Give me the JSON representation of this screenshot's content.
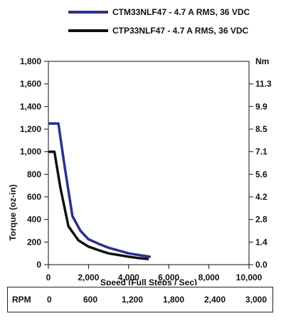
{
  "chart_data": {
    "type": "line",
    "xlabel": "Speed  (Full Steps / Sec)",
    "ylabel": "Torque (oz-in)",
    "y2label": "Nm",
    "xlim": [
      0,
      10000
    ],
    "ylim": [
      0,
      1800
    ],
    "xticks": [
      "0",
      "2,000",
      "4,000",
      "6,000",
      "8,000",
      "10,000"
    ],
    "yticks": [
      "0",
      "200",
      "400",
      "600",
      "800",
      "1,000",
      "1,200",
      "1,400",
      "1,600",
      "1,800"
    ],
    "y2ticks": [
      "0.0",
      "1.4",
      "2.8",
      "4.2",
      "5.6",
      "7.1",
      "8.5",
      "9.9",
      "11.3"
    ],
    "grid": false,
    "legend_position": "top",
    "series": [
      {
        "name": "CTM33NLF47  -  4.7 A RMS,  36 VDC",
        "color": "#2b2f8f",
        "x": [
          0,
          500,
          800,
          1200,
          1600,
          2000,
          2500,
          3000,
          3500,
          4000,
          4500,
          5000,
          5100
        ],
        "y": [
          1250,
          1250,
          880,
          430,
          300,
          225,
          185,
          150,
          125,
          100,
          85,
          72,
          68
        ]
      },
      {
        "name": "CTP33NLF47  -  4.7 A RMS,  36 VDC",
        "color": "#111111",
        "x": [
          0,
          300,
          600,
          1000,
          1500,
          2000,
          2500,
          3000,
          3500,
          4000,
          4500,
          5000
        ],
        "y": [
          1000,
          1000,
          680,
          340,
          215,
          160,
          128,
          100,
          85,
          70,
          58,
          50
        ]
      }
    ]
  },
  "rpm_table": {
    "label": "RPM",
    "values": [
      "0",
      "600",
      "1,200",
      "1,800",
      "2,400",
      "3,000"
    ]
  }
}
